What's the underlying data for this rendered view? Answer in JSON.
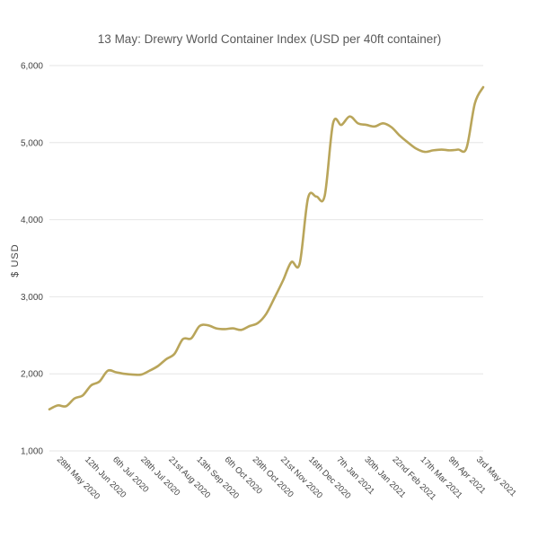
{
  "chart_data": {
    "type": "line",
    "title": "13 May: Drewry World Container Index (USD per 40ft container)",
    "xlabel": "",
    "ylabel": "$ USD",
    "ylim": [
      1000,
      6000
    ],
    "yticks": [
      {
        "value": 1000,
        "label": "1,000"
      },
      {
        "value": 2000,
        "label": "2,000"
      },
      {
        "value": 3000,
        "label": "3,000"
      },
      {
        "value": 4000,
        "label": "4,000"
      },
      {
        "value": 5000,
        "label": "5,000"
      },
      {
        "value": 6000,
        "label": "6,000"
      }
    ],
    "xticks": [
      "28th May 2020",
      "12th Jun 2020",
      "6th Jul 2020",
      "28th Jul 2020",
      "21st Aug 2020",
      "13th Sep 2020",
      "6th Oct 2020",
      "29th Oct 2020",
      "21st Nov 2020",
      "16th Dec 2020",
      "7th Jan 2021",
      "30th Jan 2021",
      "22nd Feb 2021",
      "17th Mar 2021",
      "9th Apr 2021",
      "3rd May 2021"
    ],
    "grid": true,
    "legend": "none",
    "color": "#b9a55a",
    "series": [
      {
        "x": [
          "2020-05-14",
          "2020-05-21",
          "2020-05-28",
          "2020-06-04",
          "2020-06-11",
          "2020-06-18",
          "2020-06-25",
          "2020-07-02",
          "2020-07-09",
          "2020-07-16",
          "2020-07-23",
          "2020-07-30",
          "2020-08-06",
          "2020-08-13",
          "2020-08-20",
          "2020-08-27",
          "2020-09-03",
          "2020-09-10",
          "2020-09-17",
          "2020-09-24",
          "2020-10-01",
          "2020-10-08",
          "2020-10-15",
          "2020-10-22",
          "2020-10-29",
          "2020-11-05",
          "2020-11-12",
          "2020-11-19",
          "2020-11-26",
          "2020-12-03",
          "2020-12-10",
          "2020-12-17",
          "2020-12-24",
          "2020-12-31",
          "2021-01-07",
          "2021-01-14",
          "2021-01-21",
          "2021-01-28",
          "2021-02-04",
          "2021-02-11",
          "2021-02-18",
          "2021-02-25",
          "2021-03-04",
          "2021-03-11",
          "2021-03-18",
          "2021-03-25",
          "2021-04-01",
          "2021-04-08",
          "2021-04-15",
          "2021-04-22",
          "2021-04-29",
          "2021-05-06",
          "2021-05-13"
        ],
        "values": [
          1540,
          1590,
          1580,
          1680,
          1720,
          1850,
          1900,
          2040,
          2020,
          2000,
          1990,
          1990,
          2040,
          2100,
          2190,
          2260,
          2450,
          2460,
          2620,
          2630,
          2590,
          2580,
          2590,
          2570,
          2620,
          2660,
          2780,
          2990,
          3210,
          3450,
          3430,
          4280,
          4300,
          4310,
          5250,
          5230,
          5340,
          5250,
          5230,
          5210,
          5250,
          5200,
          5090,
          5000,
          4920,
          4880,
          4900,
          4910,
          4900,
          4910,
          4930,
          5510,
          5720
        ]
      }
    ]
  }
}
